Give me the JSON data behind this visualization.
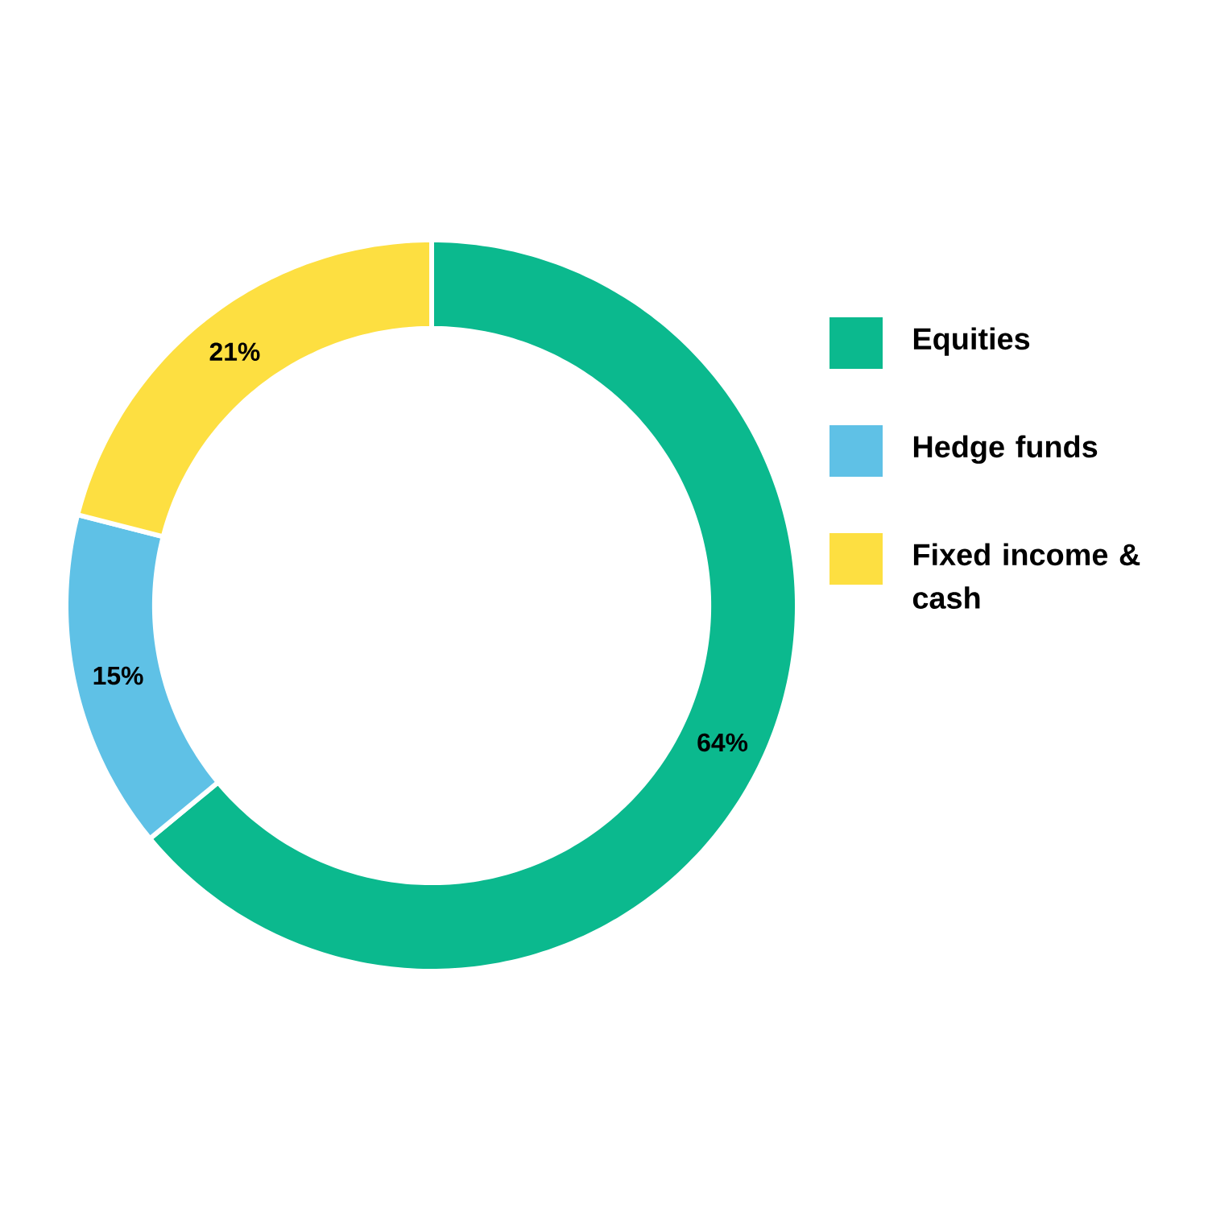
{
  "chart_data": {
    "type": "donut",
    "categories": [
      "Equities",
      "Hedge funds",
      "Fixed income & cash"
    ],
    "values": [
      64,
      15,
      21
    ],
    "colors": [
      "#0bb98e",
      "#5fc1e6",
      "#fddf41"
    ],
    "value_labels": [
      "64%",
      "15%",
      "21%"
    ],
    "legend": "right"
  }
}
